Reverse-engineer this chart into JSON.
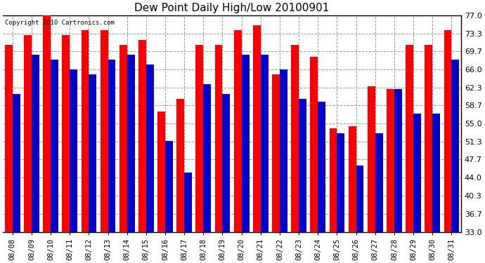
{
  "title": "Dew Point Daily High/Low 20100901",
  "copyright": "Copyright 2010 Cartronics.com",
  "dates": [
    "08/08",
    "08/09",
    "08/10",
    "08/11",
    "08/12",
    "08/13",
    "08/14",
    "08/15",
    "08/16",
    "08/17",
    "08/18",
    "08/19",
    "08/20",
    "08/21",
    "08/22",
    "08/23",
    "08/24",
    "08/25",
    "08/26",
    "08/27",
    "08/28",
    "08/29",
    "08/30",
    "08/31"
  ],
  "high": [
    71.0,
    73.0,
    77.0,
    73.0,
    74.0,
    74.0,
    71.0,
    72.0,
    57.5,
    60.0,
    71.0,
    71.0,
    74.0,
    75.0,
    65.0,
    71.0,
    68.5,
    54.0,
    54.5,
    62.5,
    62.0,
    71.0,
    71.0,
    74.0
  ],
  "low": [
    61.0,
    69.0,
    68.0,
    66.0,
    65.0,
    68.0,
    69.0,
    67.0,
    51.5,
    45.0,
    63.0,
    61.0,
    69.0,
    69.0,
    66.0,
    60.0,
    59.5,
    53.0,
    46.5,
    53.0,
    62.0,
    57.0,
    57.0,
    68.0
  ],
  "high_color": "#ff0000",
  "low_color": "#0000cc",
  "bg_color": "#ffffff",
  "plot_bg": "#ffffff",
  "grid_color": "#999999",
  "ymin": 33.0,
  "ymax": 77.0,
  "yticks": [
    33.0,
    36.7,
    40.3,
    44.0,
    47.7,
    51.3,
    55.0,
    58.7,
    62.3,
    66.0,
    69.7,
    73.3,
    77.0
  ],
  "bar_width": 0.4,
  "figwidth": 6.9,
  "figheight": 3.75,
  "dpi": 100
}
